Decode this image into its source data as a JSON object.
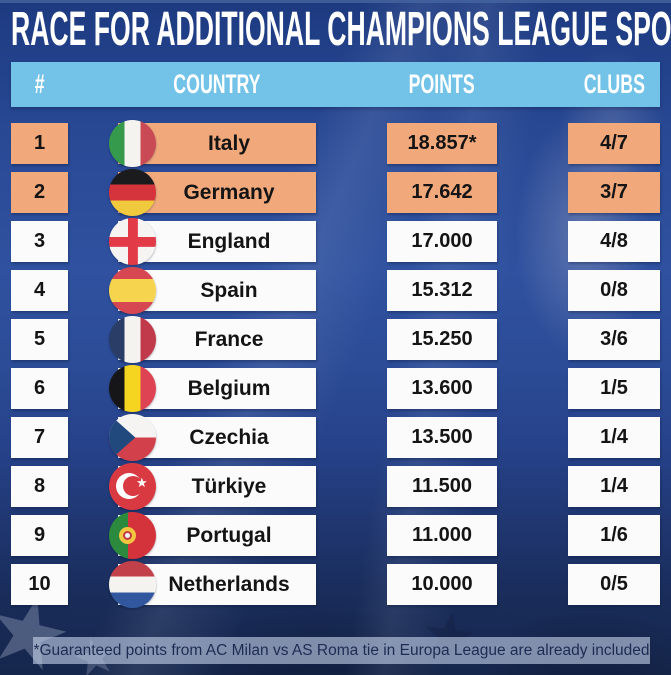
{
  "title": "RACE FOR ADDITIONAL CHAMPIONS LEAGUE SPOTS",
  "footnote": "*Guaranteed points from AC Milan vs AS Roma tie in Europa League are already included",
  "colors": {
    "title_band_bg": "#1d3a80",
    "header_row_bg": "#73c3e8",
    "highlight_row_bg": "#f1a97c",
    "normal_row_bg": "#fbfbfb",
    "cell_text": "#141414",
    "footnote_bg": "#c4d1e9",
    "footnote_text": "#1e2b52"
  },
  "chart_data": {
    "type": "table",
    "title": "RACE FOR ADDITIONAL CHAMPIONS LEAGUE SPOTS",
    "columns": [
      "#",
      "COUNTRY",
      "POINTS",
      "CLUBS"
    ],
    "rows": [
      {
        "rank": "1",
        "country": "Italy",
        "flag": "italy",
        "points": "18.857*",
        "clubs": "4/7",
        "highlighted": true
      },
      {
        "rank": "2",
        "country": "Germany",
        "flag": "germany",
        "points": "17.642",
        "clubs": "3/7",
        "highlighted": true
      },
      {
        "rank": "3",
        "country": "England",
        "flag": "england",
        "points": "17.000",
        "clubs": "4/8",
        "highlighted": false
      },
      {
        "rank": "4",
        "country": "Spain",
        "flag": "spain",
        "points": "15.312",
        "clubs": "0/8",
        "highlighted": false
      },
      {
        "rank": "5",
        "country": "France",
        "flag": "france",
        "points": "15.250",
        "clubs": "3/6",
        "highlighted": false
      },
      {
        "rank": "6",
        "country": "Belgium",
        "flag": "belgium",
        "points": "13.600",
        "clubs": "1/5",
        "highlighted": false
      },
      {
        "rank": "7",
        "country": "Czechia",
        "flag": "czechia",
        "points": "13.500",
        "clubs": "1/4",
        "highlighted": false
      },
      {
        "rank": "8",
        "country": "Türkiye",
        "flag": "turkiye",
        "points": "11.500",
        "clubs": "1/4",
        "highlighted": false
      },
      {
        "rank": "9",
        "country": "Portugal",
        "flag": "portugal",
        "points": "11.000",
        "clubs": "1/6",
        "highlighted": false
      },
      {
        "rank": "10",
        "country": "Netherlands",
        "flag": "netherlands",
        "points": "10.000",
        "clubs": "0/5",
        "highlighted": false
      }
    ],
    "layout": {
      "grid": false,
      "legend": "none",
      "highlight_note": "top 2 rows highlighted orange = current holders of additional spots"
    }
  }
}
